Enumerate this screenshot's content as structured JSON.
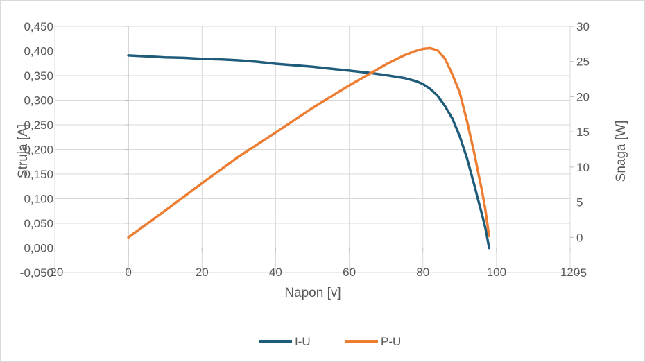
{
  "chart_data": {
    "type": "scatter",
    "title": "",
    "xlabel": "Napon [v]",
    "ylabel": "Struja [A]",
    "y2label": "Snaga [W]",
    "xlim": [
      -20,
      120
    ],
    "ylim": [
      -0.05,
      0.45
    ],
    "y2lim": [
      -5,
      30
    ],
    "x_ticks": [
      "-20",
      "0",
      "20",
      "40",
      "60",
      "80",
      "100",
      "120"
    ],
    "y_ticks": [
      "-0,050",
      "0,000",
      "0,050",
      "0,100",
      "0,150",
      "0,200",
      "0,250",
      "0,300",
      "0,350",
      "0,400",
      "0,450"
    ],
    "y2_ticks": [
      "-5",
      "0",
      "5",
      "10",
      "15",
      "20",
      "25",
      "30"
    ],
    "legend_position": "bottom",
    "grid": true,
    "series": [
      {
        "name": "I-U",
        "axis": "left",
        "color": "#1f5c7a",
        "x": [
          0,
          5,
          10,
          15,
          20,
          25,
          30,
          35,
          40,
          45,
          50,
          55,
          60,
          65,
          70,
          75,
          78,
          80,
          82,
          84,
          86,
          88,
          90,
          92,
          94,
          95,
          96,
          97,
          97.5,
          98
        ],
        "y": [
          0.391,
          0.389,
          0.387,
          0.386,
          0.384,
          0.383,
          0.381,
          0.378,
          0.374,
          0.371,
          0.368,
          0.364,
          0.36,
          0.356,
          0.351,
          0.345,
          0.339,
          0.333,
          0.323,
          0.309,
          0.288,
          0.263,
          0.227,
          0.182,
          0.127,
          0.098,
          0.07,
          0.04,
          0.02,
          0.0
        ]
      },
      {
        "name": "P-U",
        "axis": "right",
        "color": "#ed7d31",
        "x": [
          0,
          10,
          20,
          30,
          40,
          50,
          55,
          60,
          65,
          70,
          75,
          78,
          80,
          82,
          84,
          86,
          88,
          90,
          92,
          94,
          95,
          96,
          97,
          97.5,
          98
        ],
        "y": [
          0,
          3.8,
          7.7,
          11.5,
          14.9,
          18.4,
          20.0,
          21.6,
          23.1,
          24.6,
          25.9,
          26.5,
          26.8,
          26.9,
          26.6,
          25.4,
          23.2,
          20.6,
          16.5,
          11.9,
          9.3,
          6.8,
          3.9,
          2.0,
          0.2
        ]
      }
    ]
  }
}
